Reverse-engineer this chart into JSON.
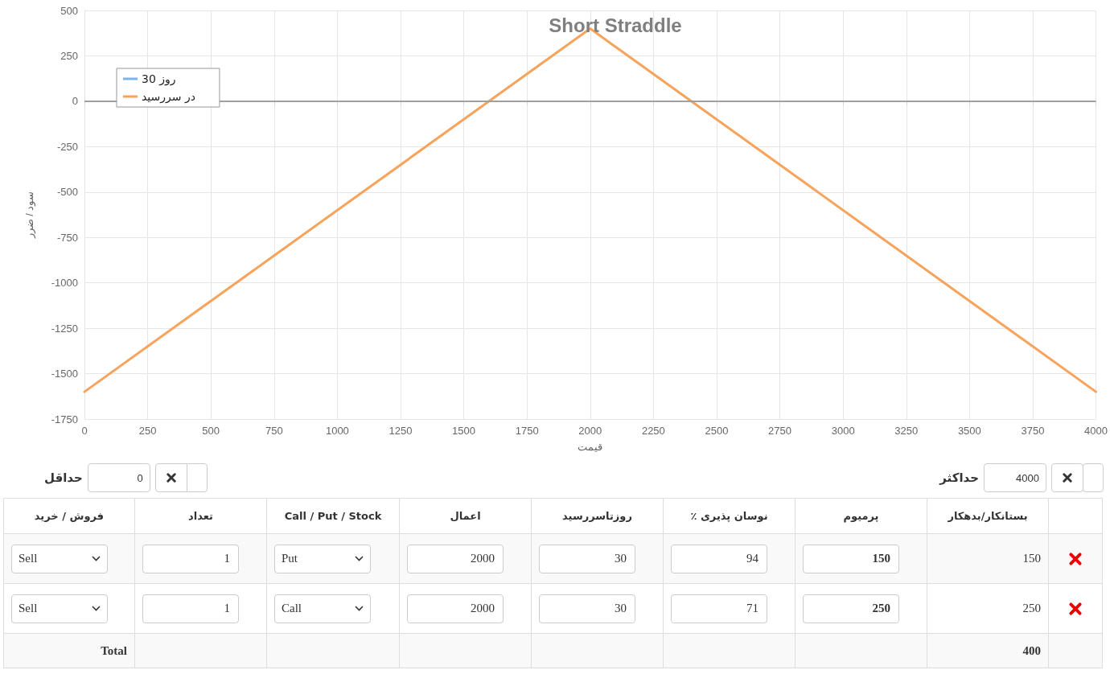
{
  "chart_data": [
    {
      "type": "line",
      "title": "Short Straddle",
      "xlabel": "قیمت",
      "ylabel": "سود / ضرر",
      "x": [
        0,
        2000,
        4000
      ],
      "series": [
        {
          "name": "روز 30",
          "color": "#7cb5ec",
          "values": [
            null,
            null,
            null
          ]
        },
        {
          "name": "در سررسید",
          "color": "#f7a35c",
          "values": [
            -1600,
            400,
            -1600
          ]
        }
      ],
      "xlim": [
        0,
        4000
      ],
      "xticks": [
        0,
        250,
        500,
        750,
        1000,
        1250,
        1500,
        1750,
        2000,
        2250,
        2500,
        2750,
        3000,
        3250,
        3500,
        3750,
        4000
      ],
      "ylim": [
        -1750,
        500
      ],
      "yticks": [
        -1750,
        -1500,
        -1250,
        -1000,
        -750,
        -500,
        -250,
        0,
        250,
        500
      ],
      "ref_lines": [
        {
          "axis": "y",
          "value": 0,
          "color": "#a0a0a0"
        }
      ],
      "grid": true,
      "legend": "top left",
      "marker": "none",
      "line_style": "solid"
    },
    {
      "type": "other",
      "annotations": [
        "حداقل",
        "0",
        "حداکثر",
        "4000"
      ],
      "categories": [
        "فروش / خرید",
        "تعداد",
        "Call / Put / Stock",
        "اعمال",
        "روزتاسررسید",
        "نوسان پذیری ٪",
        "پرمیوم",
        "بستانکار/بدهکار",
        null
      ],
      "cells": [
        [
          "Sell",
          "1",
          "Put",
          "2000",
          "30",
          "94",
          "150",
          "150",
          null
        ],
        [
          "Sell",
          "1",
          "Call",
          "2000",
          "30",
          "71",
          "250",
          "250",
          null
        ],
        [
          "Total",
          null,
          null,
          null,
          null,
          null,
          null,
          "400",
          null
        ]
      ]
    }
  ]
}
